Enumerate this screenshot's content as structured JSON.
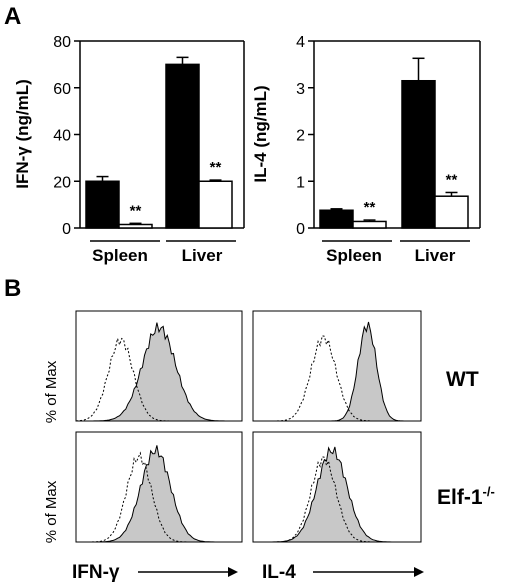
{
  "panels": {
    "a": "A",
    "b": "B"
  },
  "chart_data": [
    {
      "type": "bar",
      "ylabel": "IFN-γ (ng/mL)",
      "ylim": [
        0,
        80
      ],
      "yticks": [
        "0",
        "20",
        "40",
        "60",
        "80"
      ],
      "groups": [
        "Spleen",
        "Liver"
      ],
      "series": [
        {
          "color": "#000000",
          "values": [
            20,
            70
          ],
          "errors": [
            2,
            3
          ]
        },
        {
          "color": "#ffffff",
          "values": [
            1.5,
            20
          ],
          "errors": [
            0.5,
            0.5
          ]
        }
      ],
      "annotations": [
        "**",
        "**"
      ]
    },
    {
      "type": "bar",
      "ylabel": "IL-4 (ng/mL)",
      "ylim": [
        0,
        4
      ],
      "yticks": [
        "0",
        "1",
        "2",
        "3",
        "4"
      ],
      "groups": [
        "Spleen",
        "Liver"
      ],
      "series": [
        {
          "color": "#000000",
          "values": [
            0.38,
            3.15
          ],
          "errors": [
            0.03,
            0.48
          ]
        },
        {
          "color": "#ffffff",
          "values": [
            0.14,
            0.68
          ],
          "errors": [
            0.03,
            0.08
          ]
        }
      ],
      "annotations": [
        "**",
        "**"
      ]
    },
    {
      "type": "area",
      "ylabel": "% of Max",
      "row_labels": [
        "WT",
        "Elf-1-/-"
      ],
      "row_label_wt": "WT",
      "row_label_elf_base": "Elf-1",
      "row_label_elf_sup": "-/-",
      "xlabels": [
        "IFN-γ",
        "IL-4"
      ],
      "fill_color": "#c8c8c8",
      "histograms": [
        {
          "row": "WT",
          "marker": "IFN-γ",
          "control_peak": 0.22,
          "stained_peak": 0.62
        },
        {
          "row": "WT",
          "marker": "IL-4",
          "control_peak": 0.4,
          "stained_peak": 0.83
        },
        {
          "row": "Elf-1-/-",
          "marker": "IFN-γ",
          "control_peak": 0.3,
          "stained_peak": 0.42
        },
        {
          "row": "Elf-1-/-",
          "marker": "IL-4",
          "control_peak": 0.4,
          "stained_peak": 0.47
        }
      ]
    }
  ]
}
